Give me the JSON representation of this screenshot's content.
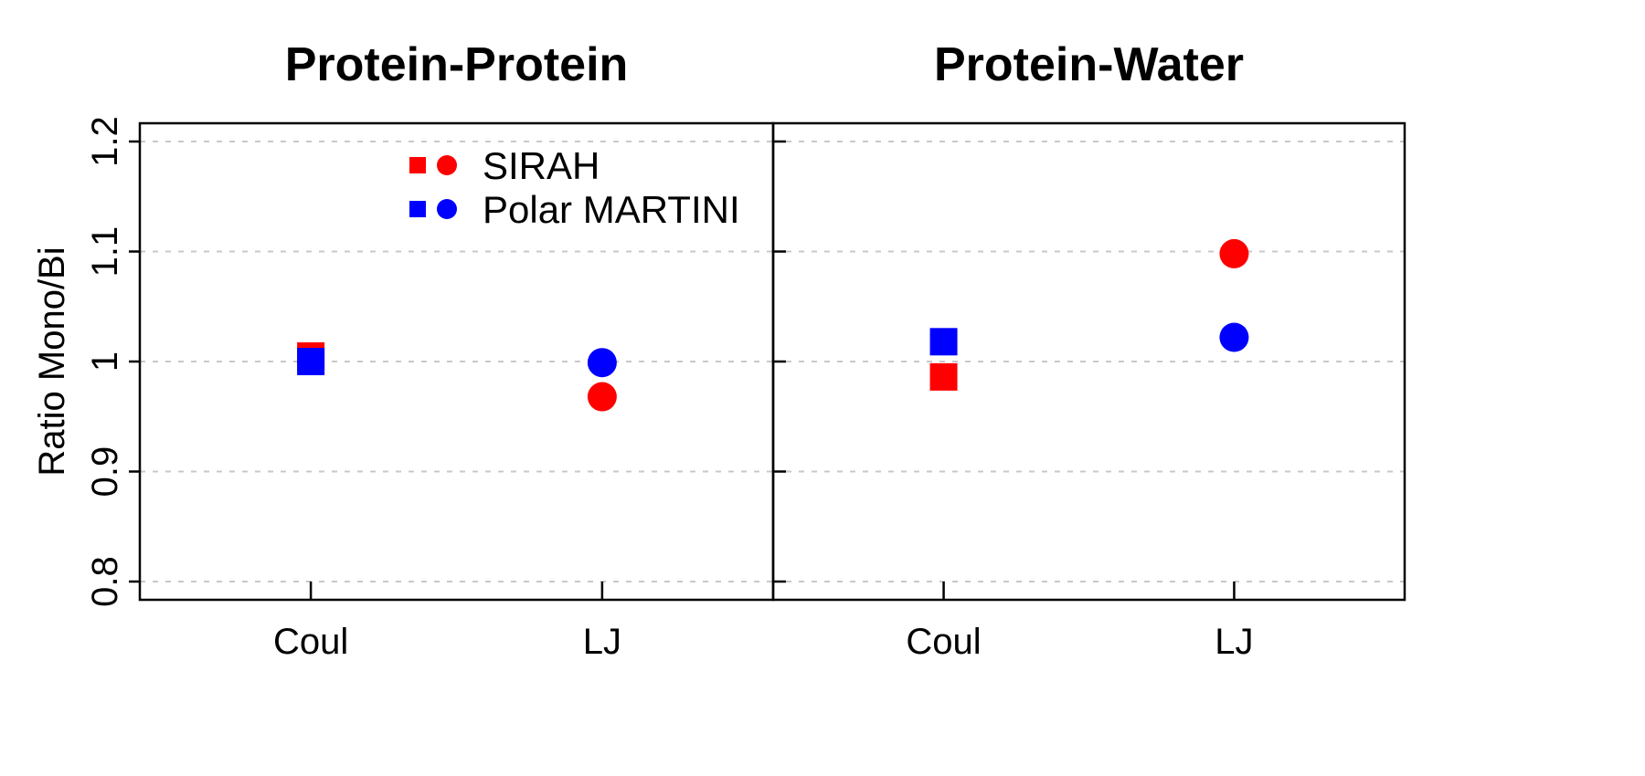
{
  "chart_data": {
    "type": "scatter",
    "ylabel": "Ratio Mono/Bi",
    "ylim": [
      0.8,
      1.2
    ],
    "yticks": [
      "0.8",
      "0.9",
      "1",
      "1.1",
      "1.2"
    ],
    "grid": true,
    "legend": {
      "placement": "top-center of left panel",
      "entries": [
        {
          "label": "SIRAH",
          "color": "#ff0000"
        },
        {
          "label": "Polar MARTINI",
          "color": "#0000ff"
        }
      ]
    },
    "panels": [
      {
        "title": "Protein-Protein",
        "categories": [
          "Coul",
          "LJ"
        ],
        "series": [
          {
            "name": "SIRAH",
            "color": "#ff0000",
            "markers": [
              "square",
              "circle"
            ],
            "values": [
              1.005,
              0.968
            ]
          },
          {
            "name": "Polar MARTINI",
            "color": "#0000ff",
            "markers": [
              "square",
              "circle"
            ],
            "values": [
              1.0,
              0.999
            ]
          }
        ]
      },
      {
        "title": "Protein-Water",
        "categories": [
          "Coul",
          "LJ"
        ],
        "series": [
          {
            "name": "SIRAH",
            "color": "#ff0000",
            "markers": [
              "square",
              "circle"
            ],
            "values": [
              0.986,
              1.098
            ]
          },
          {
            "name": "Polar MARTINI",
            "color": "#0000ff",
            "markers": [
              "square",
              "circle"
            ],
            "values": [
              1.018,
              1.022
            ]
          }
        ]
      }
    ]
  }
}
